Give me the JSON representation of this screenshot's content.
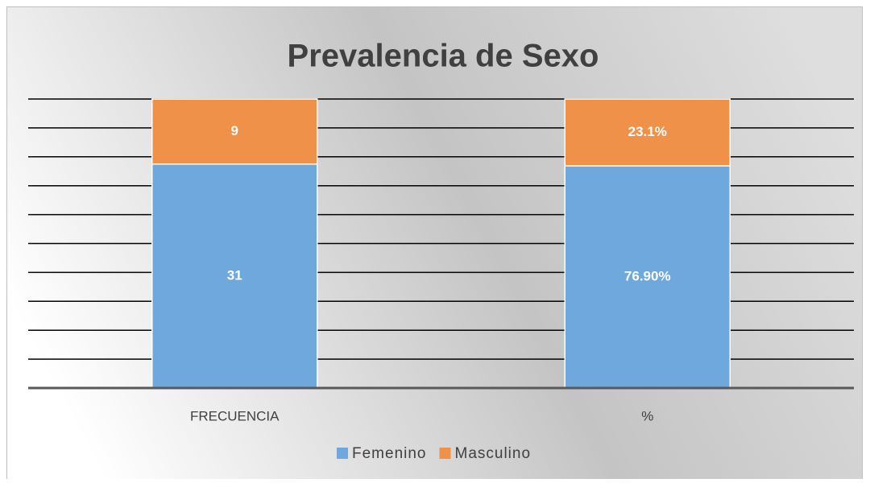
{
  "chart_data": {
    "type": "bar",
    "stacking": "percent",
    "title": "Prevalencia de Sexo",
    "categories": [
      "FRECUENCIA",
      "%"
    ],
    "series": [
      {
        "name": "Femenino",
        "color": "#6fa8dc",
        "values": [
          31,
          76.9
        ],
        "value_labels": [
          "31",
          "76.90%"
        ]
      },
      {
        "name": "Masculino",
        "color": "#f0914a",
        "values": [
          9,
          23.1
        ],
        "value_labels": [
          "9",
          "23.1%"
        ]
      }
    ],
    "ylim": [
      0,
      100
    ],
    "yticks": [
      0,
      10,
      20,
      30,
      40,
      50,
      60,
      70,
      80,
      90,
      100
    ],
    "show_ytick_labels": false,
    "grid": true,
    "legend": "bottom"
  }
}
